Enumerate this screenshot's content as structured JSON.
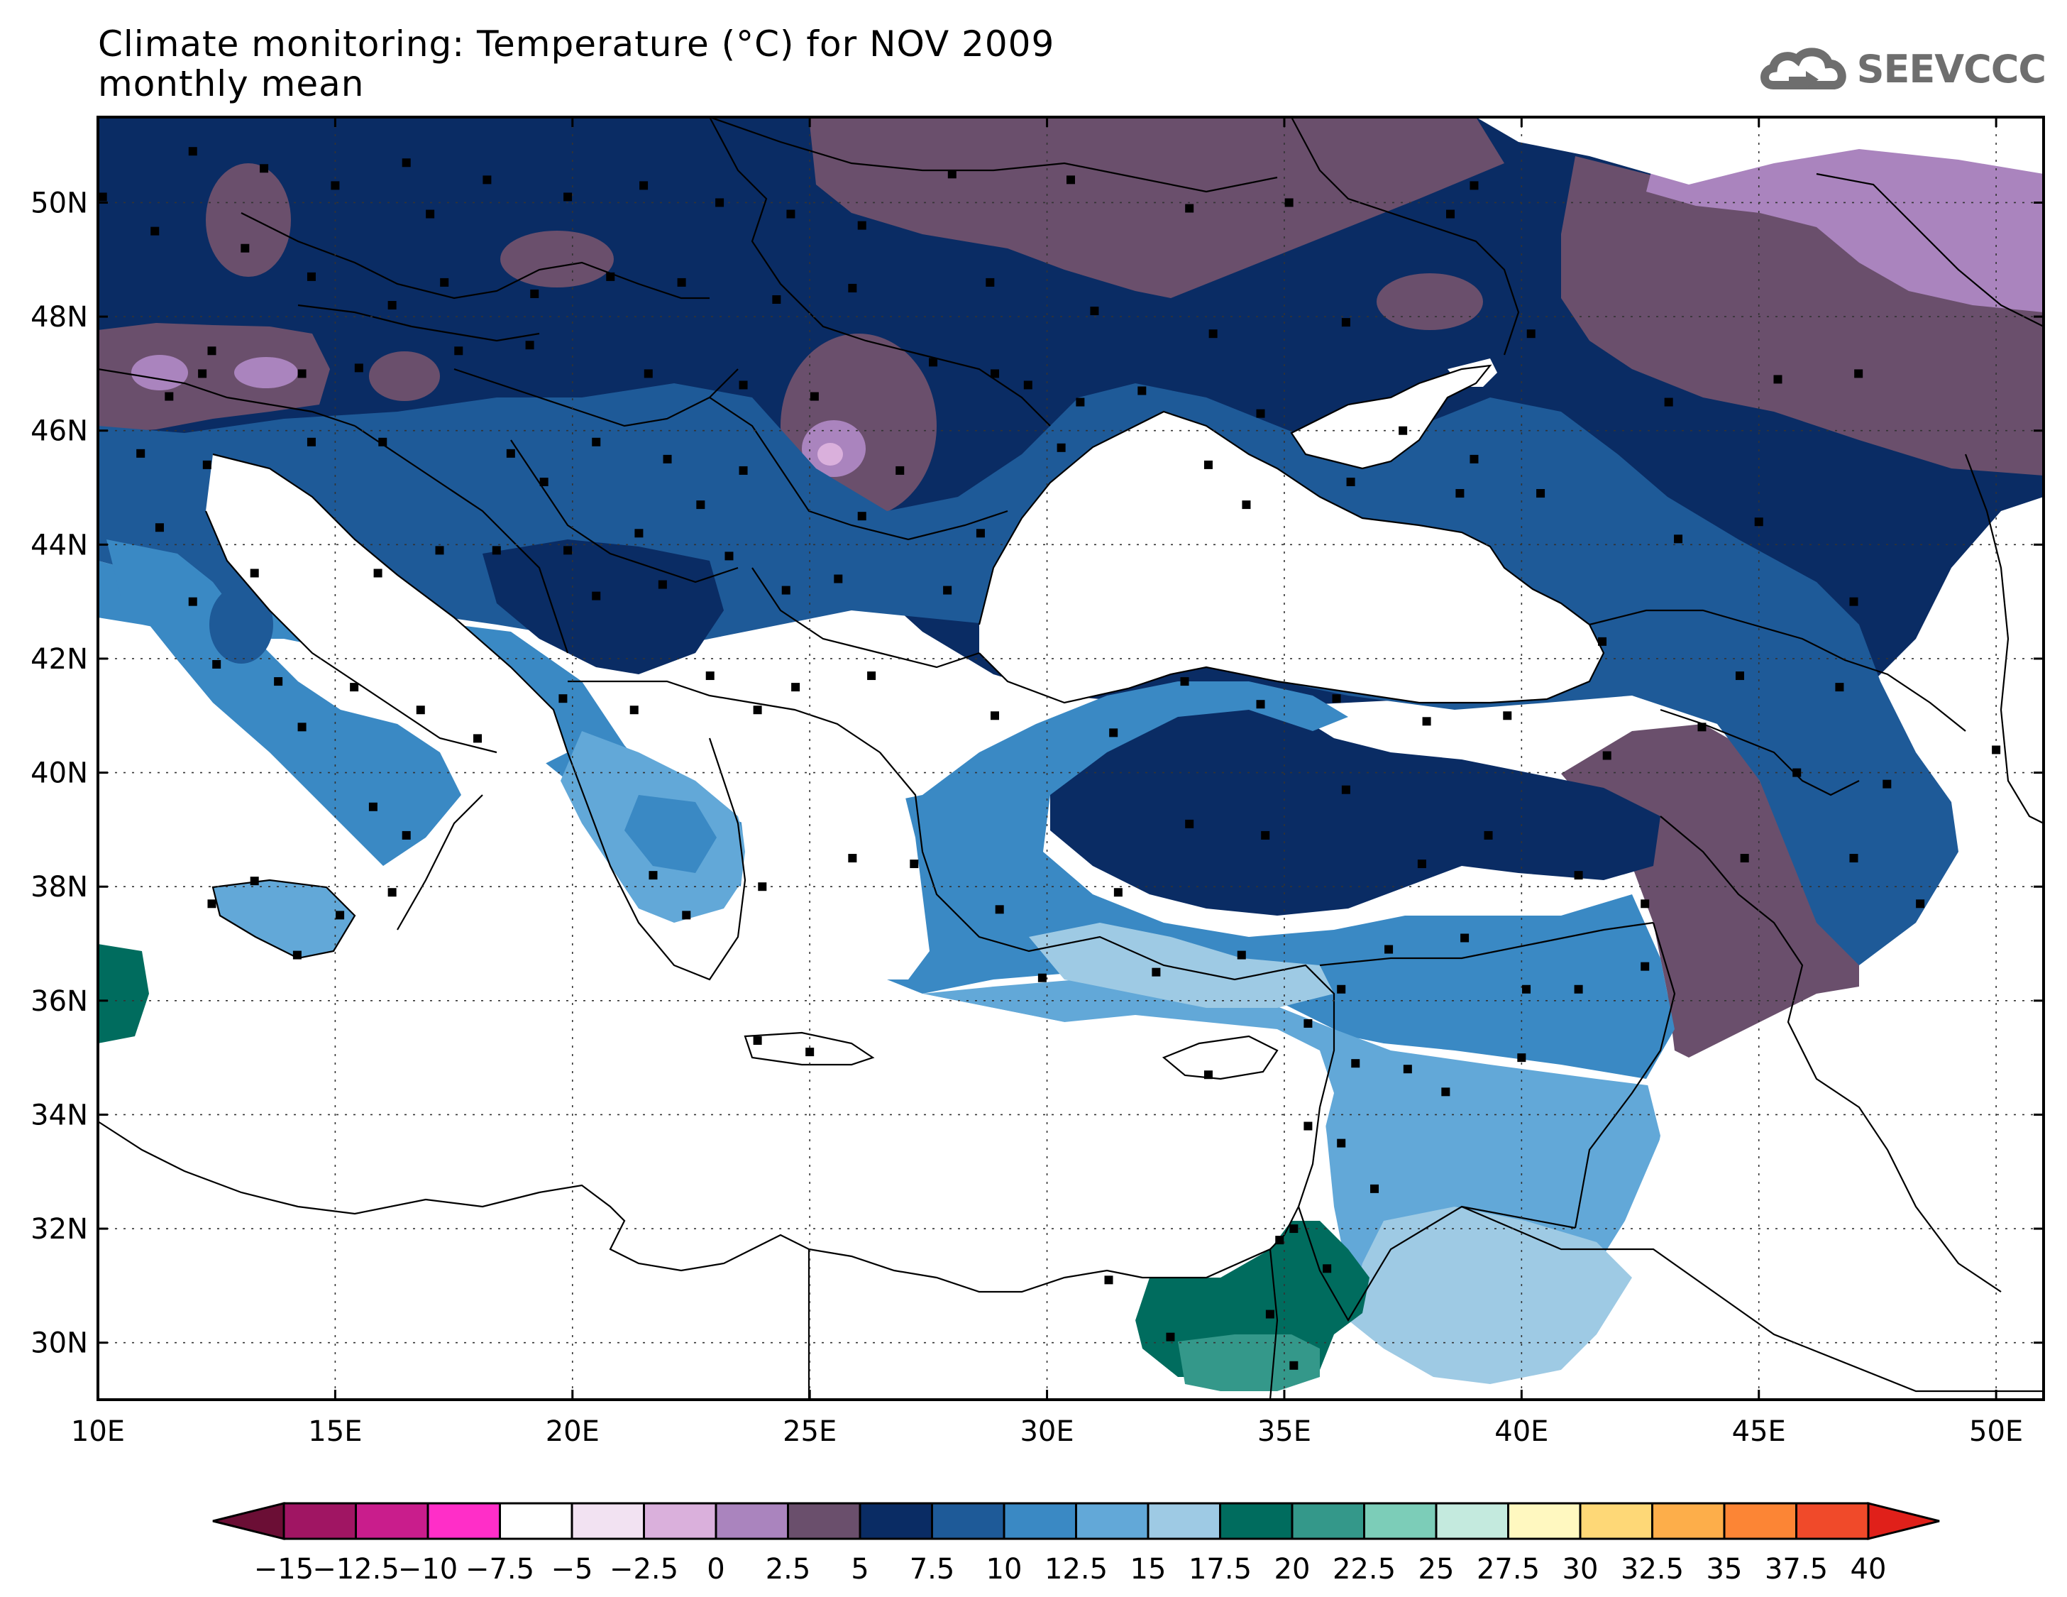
{
  "header": {
    "title_line1": "Climate monitoring: Temperature (°C) for NOV 2009",
    "title_line2": "monthly mean"
  },
  "logo": {
    "text": "SEEVCCC",
    "icon": "cloud-logo-icon"
  },
  "map": {
    "lon_min": 10,
    "lon_max": 51,
    "lat_min": 29,
    "lat_max": 51.5,
    "lon_labels": [
      "10E",
      "15E",
      "20E",
      "25E",
      "30E",
      "35E",
      "40E",
      "45E",
      "50E"
    ],
    "lon_values": [
      10,
      15,
      20,
      25,
      30,
      35,
      40,
      45,
      50
    ],
    "lat_labels": [
      "30N",
      "32N",
      "34N",
      "36N",
      "38N",
      "40N",
      "42N",
      "44N",
      "46N",
      "48N",
      "50N"
    ],
    "lat_values": [
      30,
      32,
      34,
      36,
      38,
      40,
      42,
      44,
      46,
      48,
      50
    ]
  },
  "colorbar": {
    "labels": [
      "−15",
      "−12.5",
      "−10",
      "−7.5",
      "−5",
      "−2.5",
      "0",
      "2.5",
      "5",
      "7.5",
      "10",
      "12.5",
      "15",
      "17.5",
      "20",
      "22.5",
      "25",
      "27.5",
      "30",
      "32.5",
      "35",
      "37.5",
      "40"
    ],
    "under_color": "#6b0e35",
    "over_color": "#e0201a",
    "colors": [
      "#a01563",
      "#c91d8c",
      "#ff2ec8",
      "#ffffff",
      "#f2e2f2",
      "#dab0dc",
      "#aa84be",
      "#6a4f6c",
      "#0a2c64",
      "#1e5a98",
      "#3a89c4",
      "#62a8d8",
      "#9ecae4",
      "#006c5e",
      "#34988a",
      "#7ccdb8",
      "#c4eade",
      "#fff8c0",
      "#fed877",
      "#fdae4a",
      "#fc8535",
      "#f04a2a"
    ]
  },
  "stations": [
    [
      12,
      50.9
    ],
    [
      13.5,
      50.6
    ],
    [
      15,
      50.3
    ],
    [
      16.5,
      50.7
    ],
    [
      18.2,
      50.4
    ],
    [
      19.9,
      50.1
    ],
    [
      21.5,
      50.3
    ],
    [
      23.1,
      50.0
    ],
    [
      24.6,
      49.8
    ],
    [
      26.1,
      49.6
    ],
    [
      28.0,
      50.5
    ],
    [
      30.5,
      50.4
    ],
    [
      33.0,
      49.9
    ],
    [
      35.1,
      50.0
    ],
    [
      38.5,
      49.8
    ],
    [
      39.0,
      50.3
    ],
    [
      11.2,
      49.5
    ],
    [
      13.1,
      49.2
    ],
    [
      14.5,
      48.7
    ],
    [
      16.2,
      48.2
    ],
    [
      17.3,
      48.6
    ],
    [
      19.2,
      48.4
    ],
    [
      20.8,
      48.7
    ],
    [
      22.3,
      48.6
    ],
    [
      24.3,
      48.3
    ],
    [
      25.9,
      48.5
    ],
    [
      28.8,
      48.6
    ],
    [
      31.0,
      48.1
    ],
    [
      33.5,
      47.7
    ],
    [
      36.3,
      47.9
    ],
    [
      40.2,
      47.7
    ],
    [
      12.4,
      47.4
    ],
    [
      14.3,
      47.0
    ],
    [
      15.5,
      47.1
    ],
    [
      17.6,
      47.4
    ],
    [
      19.1,
      47.5
    ],
    [
      21.6,
      47.0
    ],
    [
      23.6,
      46.8
    ],
    [
      25.1,
      46.6
    ],
    [
      27.6,
      47.2
    ],
    [
      28.9,
      47.0
    ],
    [
      30.7,
      46.5
    ],
    [
      32.0,
      46.7
    ],
    [
      34.5,
      46.3
    ],
    [
      37.5,
      46.0
    ],
    [
      39.0,
      45.5
    ],
    [
      43.1,
      46.5
    ],
    [
      45.4,
      46.9
    ],
    [
      47.1,
      47.0
    ],
    [
      10.9,
      45.6
    ],
    [
      12.3,
      45.4
    ],
    [
      14.5,
      45.8
    ],
    [
      16.0,
      45.8
    ],
    [
      18.7,
      45.6
    ],
    [
      20.5,
      45.8
    ],
    [
      22.0,
      45.5
    ],
    [
      23.6,
      45.3
    ],
    [
      26.1,
      44.5
    ],
    [
      28.6,
      44.2
    ],
    [
      30.3,
      45.7
    ],
    [
      33.4,
      45.4
    ],
    [
      34.2,
      44.7
    ],
    [
      36.4,
      45.1
    ],
    [
      38.7,
      44.9
    ],
    [
      40.4,
      44.9
    ],
    [
      43.3,
      44.1
    ],
    [
      45.0,
      44.4
    ],
    [
      47.0,
      43.0
    ],
    [
      11.3,
      44.3
    ],
    [
      12.0,
      43.0
    ],
    [
      13.3,
      43.5
    ],
    [
      15.9,
      43.5
    ],
    [
      17.2,
      43.9
    ],
    [
      18.4,
      43.9
    ],
    [
      19.9,
      43.9
    ],
    [
      20.5,
      43.1
    ],
    [
      21.9,
      43.3
    ],
    [
      23.3,
      43.8
    ],
    [
      24.5,
      43.2
    ],
    [
      25.6,
      43.4
    ],
    [
      27.9,
      43.2
    ],
    [
      41.7,
      42.3
    ],
    [
      44.6,
      41.7
    ],
    [
      46.7,
      41.5
    ],
    [
      12.5,
      41.9
    ],
    [
      13.8,
      41.6
    ],
    [
      15.4,
      41.5
    ],
    [
      16.8,
      41.1
    ],
    [
      18.0,
      40.6
    ],
    [
      19.8,
      41.3
    ],
    [
      21.3,
      41.1
    ],
    [
      22.9,
      41.7
    ],
    [
      24.7,
      41.5
    ],
    [
      26.3,
      41.7
    ],
    [
      28.9,
      41.0
    ],
    [
      31.4,
      40.7
    ],
    [
      32.9,
      41.6
    ],
    [
      34.5,
      41.2
    ],
    [
      36.1,
      41.3
    ],
    [
      38.0,
      40.9
    ],
    [
      39.7,
      41.0
    ],
    [
      41.8,
      40.3
    ],
    [
      43.8,
      40.8
    ],
    [
      45.8,
      40.0
    ],
    [
      47.7,
      39.8
    ],
    [
      50.0,
      40.4
    ],
    [
      14.3,
      40.8
    ],
    [
      15.8,
      39.4
    ],
    [
      16.5,
      38.9
    ],
    [
      16.2,
      37.9
    ],
    [
      13.3,
      38.1
    ],
    [
      12.4,
      37.7
    ],
    [
      15.1,
      37.5
    ],
    [
      14.2,
      36.8
    ],
    [
      21.7,
      38.2
    ],
    [
      22.4,
      37.5
    ],
    [
      24.0,
      38.0
    ],
    [
      25.9,
      38.5
    ],
    [
      27.2,
      38.4
    ],
    [
      29.0,
      37.6
    ],
    [
      31.5,
      37.9
    ],
    [
      33.0,
      39.1
    ],
    [
      34.6,
      38.9
    ],
    [
      36.3,
      39.7
    ],
    [
      37.9,
      38.4
    ],
    [
      39.3,
      38.9
    ],
    [
      41.2,
      38.2
    ],
    [
      42.6,
      37.7
    ],
    [
      44.7,
      38.5
    ],
    [
      47.0,
      38.5
    ],
    [
      48.4,
      37.7
    ],
    [
      29.9,
      36.4
    ],
    [
      32.3,
      36.5
    ],
    [
      34.1,
      36.8
    ],
    [
      36.2,
      36.2
    ],
    [
      37.2,
      36.9
    ],
    [
      38.8,
      37.1
    ],
    [
      40.1,
      36.2
    ],
    [
      41.2,
      36.2
    ],
    [
      42.6,
      36.6
    ],
    [
      23.9,
      35.3
    ],
    [
      25.0,
      35.1
    ],
    [
      33.4,
      34.7
    ],
    [
      35.5,
      35.6
    ],
    [
      36.5,
      34.9
    ],
    [
      37.6,
      34.8
    ],
    [
      38.4,
      34.4
    ],
    [
      40.0,
      35.0
    ],
    [
      35.5,
      33.8
    ],
    [
      36.2,
      33.5
    ],
    [
      36.9,
      32.7
    ],
    [
      35.2,
      32.0
    ],
    [
      34.9,
      31.8
    ],
    [
      35.9,
      31.3
    ],
    [
      34.7,
      30.5
    ],
    [
      35.2,
      29.6
    ],
    [
      32.6,
      30.1
    ],
    [
      31.3,
      31.1
    ],
    [
      10.1,
      50.1
    ],
    [
      11.5,
      46.6
    ],
    [
      12.2,
      47.0
    ],
    [
      17.0,
      49.8
    ],
    [
      19.4,
      45.1
    ],
    [
      21.4,
      44.2
    ],
    [
      22.7,
      44.7
    ],
    [
      26.9,
      45.3
    ],
    [
      29.6,
      46.8
    ],
    [
      23.9,
      41.1
    ]
  ],
  "icons": {
    "colorbar_under": "left-triangle-icon",
    "colorbar_over": "right-triangle-icon"
  }
}
